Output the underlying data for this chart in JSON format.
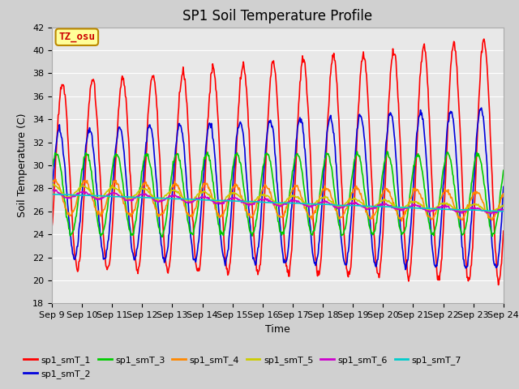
{
  "title": "SP1 Soil Temperature Profile",
  "xlabel": "Time",
  "ylabel": "Soil Temperature (C)",
  "ylim": [
    18,
    42
  ],
  "n_days": 15,
  "xtick_labels": [
    "Sep 9",
    "Sep 10",
    "Sep 11",
    "Sep 12",
    "Sep 13",
    "Sep 14",
    "Sep 15",
    "Sep 16",
    "Sep 17",
    "Sep 18",
    "Sep 19",
    "Sep 20",
    "Sep 21",
    "Sep 22",
    "Sep 23",
    "Sep 24"
  ],
  "series_names": [
    "sp1_smT_1",
    "sp1_smT_2",
    "sp1_smT_3",
    "sp1_smT_4",
    "sp1_smT_5",
    "sp1_smT_6",
    "sp1_smT_7"
  ],
  "series_colors": [
    "#ff0000",
    "#0000dd",
    "#00cc00",
    "#ff8800",
    "#cccc00",
    "#cc00cc",
    "#00cccc"
  ],
  "annotation_text": "TZ_osu",
  "annotation_color": "#cc0000",
  "annotation_bg": "#ffff99",
  "annotation_border": "#bb8800",
  "fig_bg_color": "#d0d0d0",
  "plot_bg_color": "#e8e8e8",
  "grid_color": "#ffffff",
  "title_fontsize": 12,
  "axis_label_fontsize": 9,
  "tick_fontsize": 8,
  "linewidth": 1.2
}
